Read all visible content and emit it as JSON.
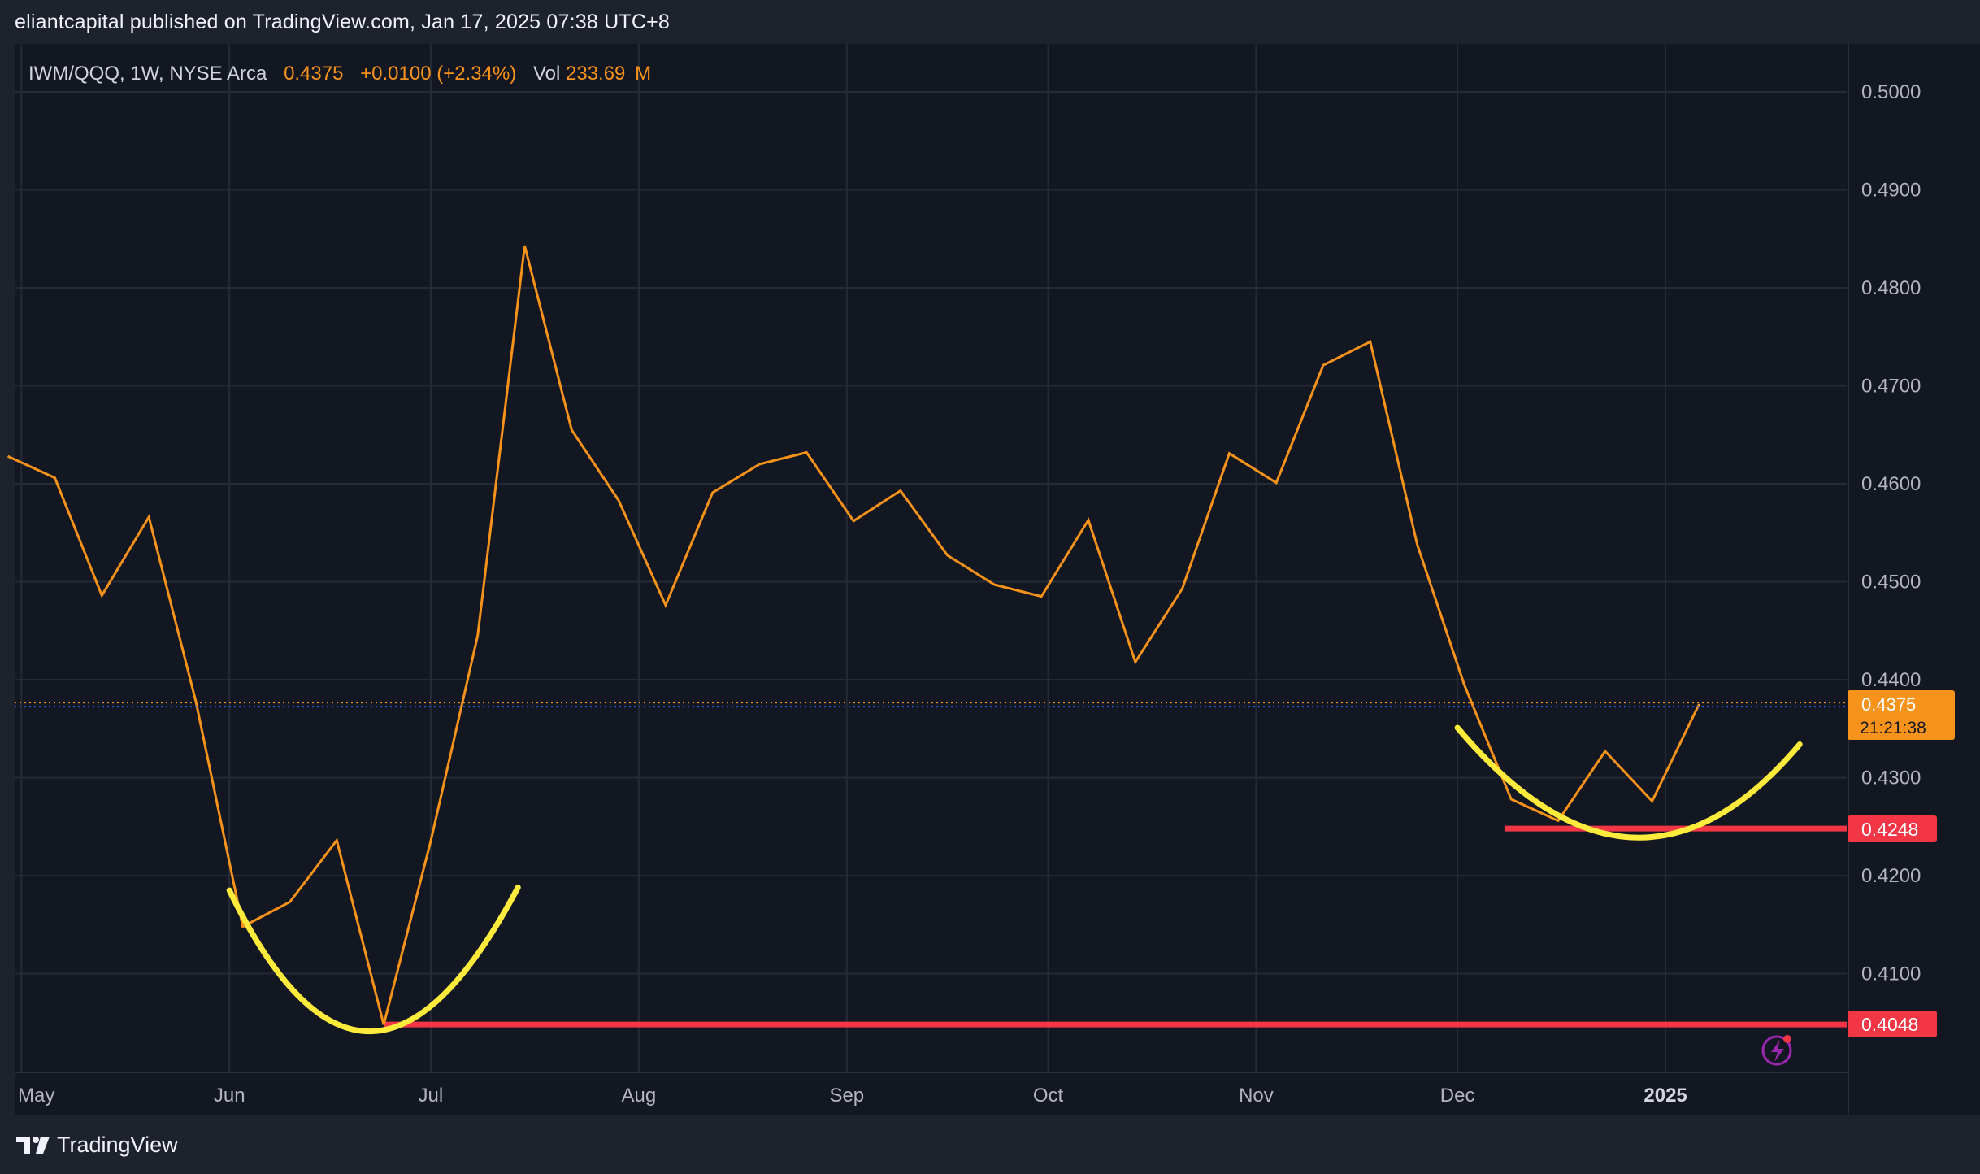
{
  "header": {
    "published_line": "eliantcapital published on TradingView.com, Jan 17, 2025 07:38 UTC+8"
  },
  "legend": {
    "symbol": "IWM/QQQ, 1W, NYSE Arca",
    "price": "0.4375",
    "change": "+0.0100 (+2.34%)",
    "vol_label": "Vol",
    "vol_value": "233.69",
    "vol_unit": "M"
  },
  "price_tag": {
    "price": "0.4375",
    "countdown": "21:21:38",
    "color": "#f7931a"
  },
  "level_tags": [
    "0.4248",
    "0.4048"
  ],
  "footer": {
    "brand_name": "TradingView",
    "brand_icon": "tradingview-logo-icon"
  },
  "colors": {
    "background": "#131722",
    "frame": "#1e222d",
    "line": "#f7931a",
    "arc": "#ffeb3b",
    "level": "#f23645",
    "grid": "#262a35",
    "axis_text": "#b2b5be",
    "marker": "#9c27b0"
  },
  "chart_data": {
    "type": "line",
    "title": "",
    "x_axis_labels": [
      "May",
      "Jun",
      "Jul",
      "Aug",
      "Sep",
      "Oct",
      "Nov",
      "Dec",
      "2025"
    ],
    "x_axis_dates": [
      "2024-05-01",
      "2024-06-01",
      "2024-07-01",
      "2024-08-01",
      "2024-09-01",
      "2024-10-01",
      "2024-11-01",
      "2024-12-01",
      "2025-01-01"
    ],
    "y_ticks": [
      "0.4100",
      "0.4200",
      "0.4300",
      "0.4400",
      "0.4500",
      "0.4600",
      "0.4700",
      "0.4800",
      "0.4900",
      "0.5000"
    ],
    "ylim": [
      0.4,
      0.5049
    ],
    "xlim": [
      "2024-04-30",
      "2025-01-28"
    ],
    "grid": true,
    "series": [
      {
        "points": [
          [
            "2024-04-29",
            0.4628
          ],
          [
            "2024-05-06",
            0.4606
          ],
          [
            "2024-05-13",
            0.4486
          ],
          [
            "2024-05-20",
            0.4566
          ],
          [
            "2024-05-27",
            0.4378
          ],
          [
            "2024-06-03",
            0.4148
          ],
          [
            "2024-06-10",
            0.4173
          ],
          [
            "2024-06-17",
            0.4236
          ],
          [
            "2024-06-24",
            0.4048
          ],
          [
            "2024-07-01",
            0.4235
          ],
          [
            "2024-07-08",
            0.4445
          ],
          [
            "2024-07-15",
            0.4843
          ],
          [
            "2024-07-22",
            0.4655
          ],
          [
            "2024-07-29",
            0.4583
          ],
          [
            "2024-08-05",
            0.4476
          ],
          [
            "2024-08-12",
            0.4591
          ],
          [
            "2024-08-19",
            0.462
          ],
          [
            "2024-08-26",
            0.4632
          ],
          [
            "2024-09-02",
            0.4562
          ],
          [
            "2024-09-09",
            0.4593
          ],
          [
            "2024-09-16",
            0.4527
          ],
          [
            "2024-09-23",
            0.4497
          ],
          [
            "2024-09-30",
            0.4485
          ],
          [
            "2024-10-07",
            0.4563
          ],
          [
            "2024-10-14",
            0.4418
          ],
          [
            "2024-10-21",
            0.4493
          ],
          [
            "2024-10-28",
            0.4631
          ],
          [
            "2024-11-04",
            0.4601
          ],
          [
            "2024-11-11",
            0.4721
          ],
          [
            "2024-11-18",
            0.4745
          ],
          [
            "2024-11-25",
            0.4538
          ],
          [
            "2024-12-02",
            0.4395
          ],
          [
            "2024-12-09",
            0.4278
          ],
          [
            "2024-12-16",
            0.4256
          ],
          [
            "2024-12-23",
            0.4327
          ],
          [
            "2024-12-30",
            0.4276
          ],
          [
            "2025-01-06",
            0.4375
          ]
        ]
      }
    ],
    "horizontal_levels": [
      {
        "value": 0.4248,
        "from": "2024-12-08"
      },
      {
        "value": 0.4048,
        "from": "2024-06-24"
      }
    ],
    "drawn_arcs": [
      {
        "start": [
          "2024-06-01",
          0.4185
        ],
        "bottom": [
          "2024-06-22",
          0.4041
        ],
        "end": [
          "2024-07-14",
          0.4188
        ]
      },
      {
        "start": [
          "2024-12-01",
          0.4351
        ],
        "bottom": [
          "2024-12-27",
          0.4239
        ],
        "end": [
          "2025-01-21",
          0.4334
        ]
      }
    ],
    "current_price_line": 0.4375
  }
}
